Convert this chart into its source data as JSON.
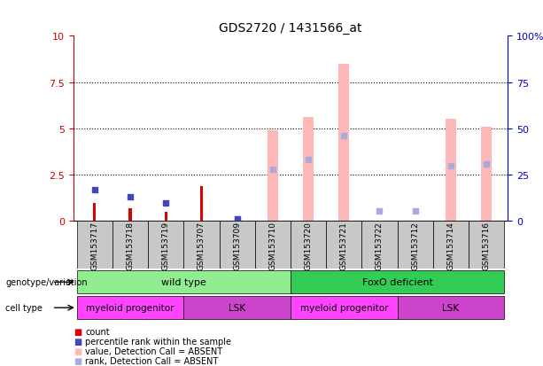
{
  "title": "GDS2720 / 1431566_at",
  "samples": [
    "GSM153717",
    "GSM153718",
    "GSM153719",
    "GSM153707",
    "GSM153709",
    "GSM153710",
    "GSM153720",
    "GSM153721",
    "GSM153722",
    "GSM153712",
    "GSM153714",
    "GSM153716"
  ],
  "count_values": [
    1.0,
    0.7,
    0.5,
    1.9,
    0.0,
    0.0,
    0.0,
    0.0,
    0.0,
    0.0,
    0.0,
    0.0
  ],
  "rank_values": [
    1.7,
    1.3,
    1.0,
    0.0,
    0.1,
    0.0,
    0.0,
    0.0,
    0.0,
    0.0,
    0.0,
    0.0
  ],
  "absent_value_values": [
    0.0,
    0.0,
    0.0,
    0.0,
    0.0,
    4.9,
    5.6,
    8.5,
    0.0,
    0.0,
    5.5,
    5.1
  ],
  "absent_rank_values": [
    0.0,
    0.0,
    0.0,
    0.0,
    0.12,
    2.8,
    3.3,
    4.6,
    0.55,
    0.55,
    3.0,
    3.1
  ],
  "ylim": [
    0,
    10
  ],
  "yticks": [
    0,
    2.5,
    5.0,
    7.5,
    10
  ],
  "yticklabels_left": [
    "0",
    "2.5",
    "5",
    "7.5",
    "10"
  ],
  "yticklabels_right": [
    "0",
    "25",
    "50",
    "75",
    "100%"
  ],
  "genotype_groups": [
    {
      "label": "wild type",
      "start": 0,
      "end": 5,
      "color": "#90EE90"
    },
    {
      "label": "FoxO deficient",
      "start": 6,
      "end": 11,
      "color": "#33CC55"
    }
  ],
  "cell_type_groups": [
    {
      "label": "myeloid progenitor",
      "start": 0,
      "end": 2,
      "color": "#FF44FF"
    },
    {
      "label": "LSK",
      "start": 3,
      "end": 5,
      "color": "#CC44CC"
    },
    {
      "label": "myeloid progenitor",
      "start": 6,
      "end": 8,
      "color": "#FF44FF"
    },
    {
      "label": "LSK",
      "start": 9,
      "end": 11,
      "color": "#CC44CC"
    }
  ],
  "count_color": "#DD0000",
  "rank_color": "#4444BB",
  "absent_value_color": "#FFB8B8",
  "absent_rank_color": "#AAAADD",
  "legend_items": [
    {
      "label": "count",
      "color": "#DD0000"
    },
    {
      "label": "percentile rank within the sample",
      "color": "#4444BB"
    },
    {
      "label": "value, Detection Call = ABSENT",
      "color": "#FFB8B8"
    },
    {
      "label": "rank, Detection Call = ABSENT",
      "color": "#AAAADD"
    }
  ],
  "bg_color": "#FFFFFF",
  "axis_left_color": "#CC0000",
  "axis_right_color": "#0000CC",
  "label_col_color": "#C8C8C8"
}
